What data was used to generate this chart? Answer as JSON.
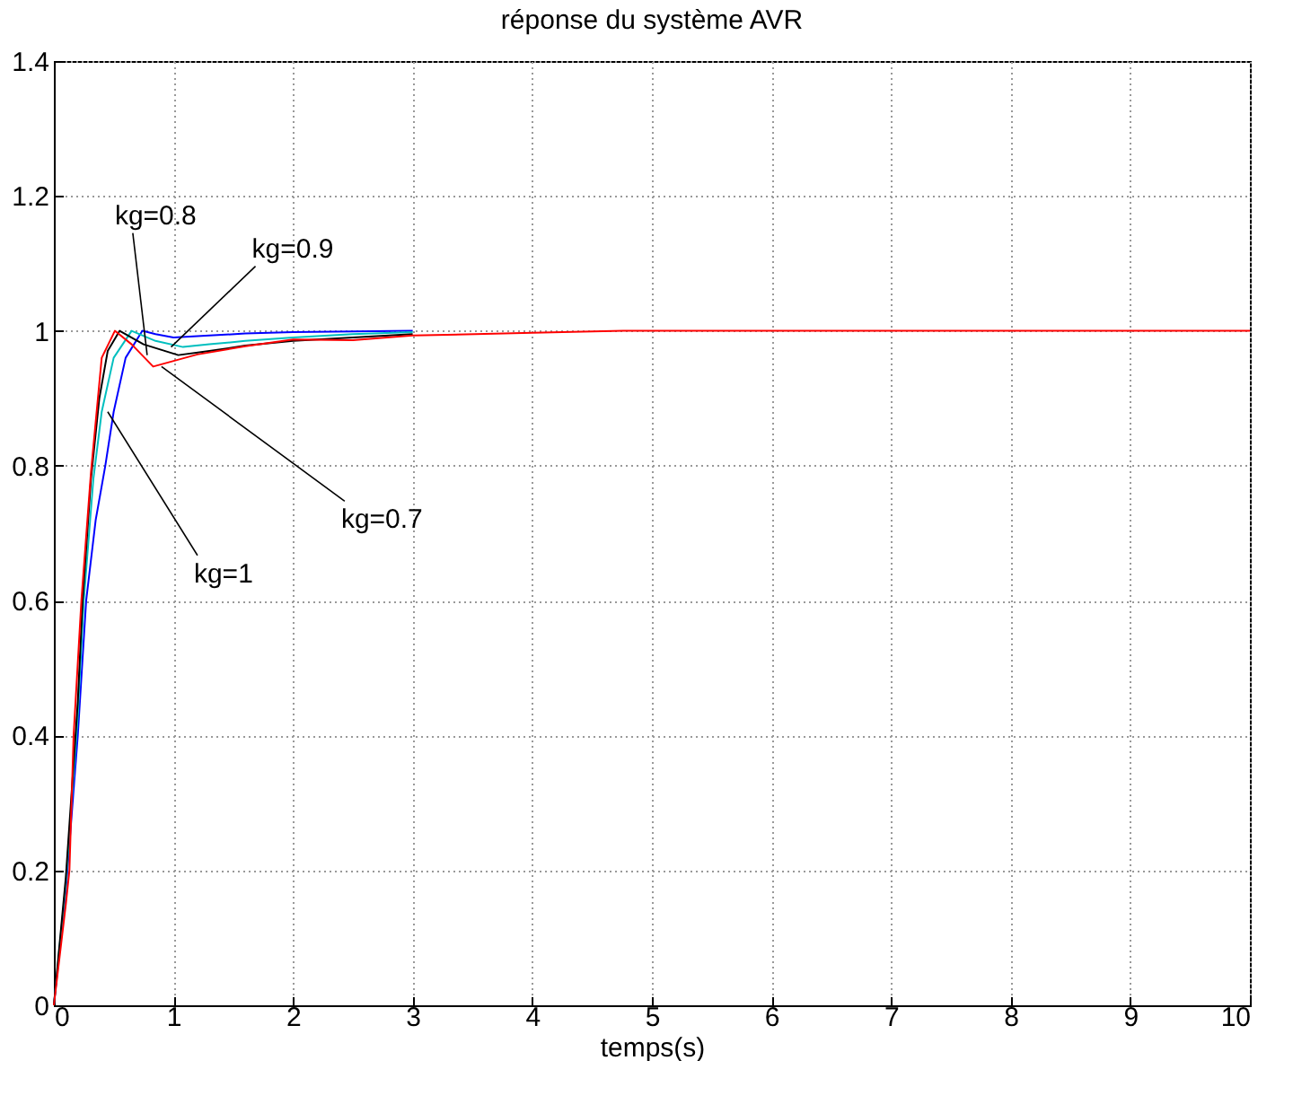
{
  "chart_data": {
    "type": "line",
    "title": "réponse du système AVR",
    "xlabel": "temps(s)",
    "xlim": [
      0,
      10
    ],
    "ylim": [
      0,
      1.4
    ],
    "xticks": [
      0,
      1,
      2,
      3,
      4,
      5,
      6,
      7,
      8,
      9,
      10
    ],
    "yticks": [
      0,
      0.2,
      0.4,
      0.6,
      0.8,
      1,
      1.2,
      1.4
    ],
    "grid": true,
    "legend": false,
    "line_style": "solid",
    "marker": "none",
    "series": [
      {
        "color": "#0000ff",
        "x": [
          0,
          0.1,
          0.2,
          0.27,
          0.35,
          0.43,
          0.5,
          0.6,
          0.74,
          0.85,
          1.0,
          1.3,
          1.6,
          2,
          3
        ],
        "values": [
          0,
          0.17,
          0.4,
          0.6,
          0.72,
          0.8,
          0.88,
          0.96,
          1.0,
          0.995,
          0.99,
          0.993,
          0.996,
          0.998,
          1
        ]
      },
      {
        "color": "#00bfbf",
        "x": [
          0,
          0.1,
          0.2,
          0.25,
          0.33,
          0.4,
          0.5,
          0.65,
          0.85,
          1.08,
          1.3,
          1.6,
          2,
          2.5,
          3
        ],
        "values": [
          0,
          0.18,
          0.43,
          0.6,
          0.78,
          0.88,
          0.96,
          1.0,
          0.985,
          0.976,
          0.98,
          0.985,
          0.99,
          0.995,
          0.998
        ]
      },
      {
        "color": "#000000",
        "x": [
          0,
          0.1,
          0.2,
          0.24,
          0.31,
          0.38,
          0.45,
          0.55,
          0.75,
          1.04,
          1.3,
          1.6,
          2,
          2.5,
          3
        ],
        "values": [
          0,
          0.19,
          0.45,
          0.6,
          0.78,
          0.9,
          0.97,
          1.0,
          0.98,
          0.964,
          0.97,
          0.978,
          0.985,
          0.99,
          0.995
        ]
      },
      {
        "color": "#ff0000",
        "x": [
          0,
          0.1,
          0.13,
          0.165,
          0.23,
          0.31,
          0.4,
          0.51,
          0.65,
          0.83,
          1.2,
          1.6,
          2,
          2.5,
          3,
          4,
          4.76,
          10
        ],
        "values": [
          0,
          0.15,
          0.2,
          0.4,
          0.6,
          0.79,
          0.96,
          1.0,
          0.98,
          0.947,
          0.965,
          0.977,
          0.987,
          0.986,
          0.993,
          0.997,
          1,
          1
        ]
      }
    ],
    "annotations": [
      {
        "text": "kg=0.8",
        "x": 0.78,
        "y": 0.964
      },
      {
        "text": "kg=0.9",
        "x": 0.98,
        "y": 0.976
      },
      {
        "text": "kg=0.7",
        "x": 0.9,
        "y": 0.947
      },
      {
        "text": "kg=1",
        "x": 0.45,
        "y": 0.88
      }
    ]
  }
}
